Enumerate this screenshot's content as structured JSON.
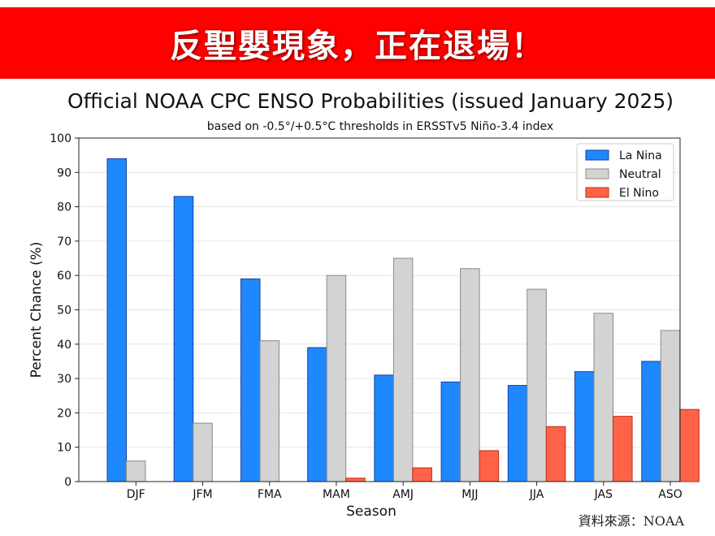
{
  "banner": {
    "text": "反聖嬰現象，正在退場！",
    "color": "#ff0000"
  },
  "source": "資料來源：NOAA",
  "chart_data": {
    "type": "bar",
    "title": "Official NOAA CPC ENSO Probabilities (issued January 2025)",
    "subtitle": "based on -0.5°/+0.5°C thresholds in ERSSTv5 Niño-3.4 index",
    "xlabel": "Season",
    "ylabel": "Percent Chance (%)",
    "ylim": [
      0,
      100
    ],
    "yticks": [
      0,
      10,
      20,
      30,
      40,
      50,
      60,
      70,
      80,
      90,
      100
    ],
    "grid": true,
    "legend_position": "top-right",
    "categories": [
      "DJF",
      "JFM",
      "FMA",
      "MAM",
      "AMJ",
      "MJJ",
      "JJA",
      "JAS",
      "ASO"
    ],
    "series": [
      {
        "name": "La Nina",
        "color": "#1e88ff",
        "edge": "#1a3fa0",
        "values": [
          94,
          83,
          59,
          39,
          31,
          29,
          28,
          32,
          35
        ]
      },
      {
        "name": "Neutral",
        "color": "#d3d3d3",
        "edge": "#8a8a8a",
        "values": [
          6,
          17,
          41,
          60,
          65,
          62,
          56,
          49,
          44
        ]
      },
      {
        "name": "El Nino",
        "color": "#ff6347",
        "edge": "#c0281a",
        "values": [
          0,
          0,
          0,
          1,
          4,
          9,
          16,
          19,
          21
        ]
      }
    ]
  }
}
